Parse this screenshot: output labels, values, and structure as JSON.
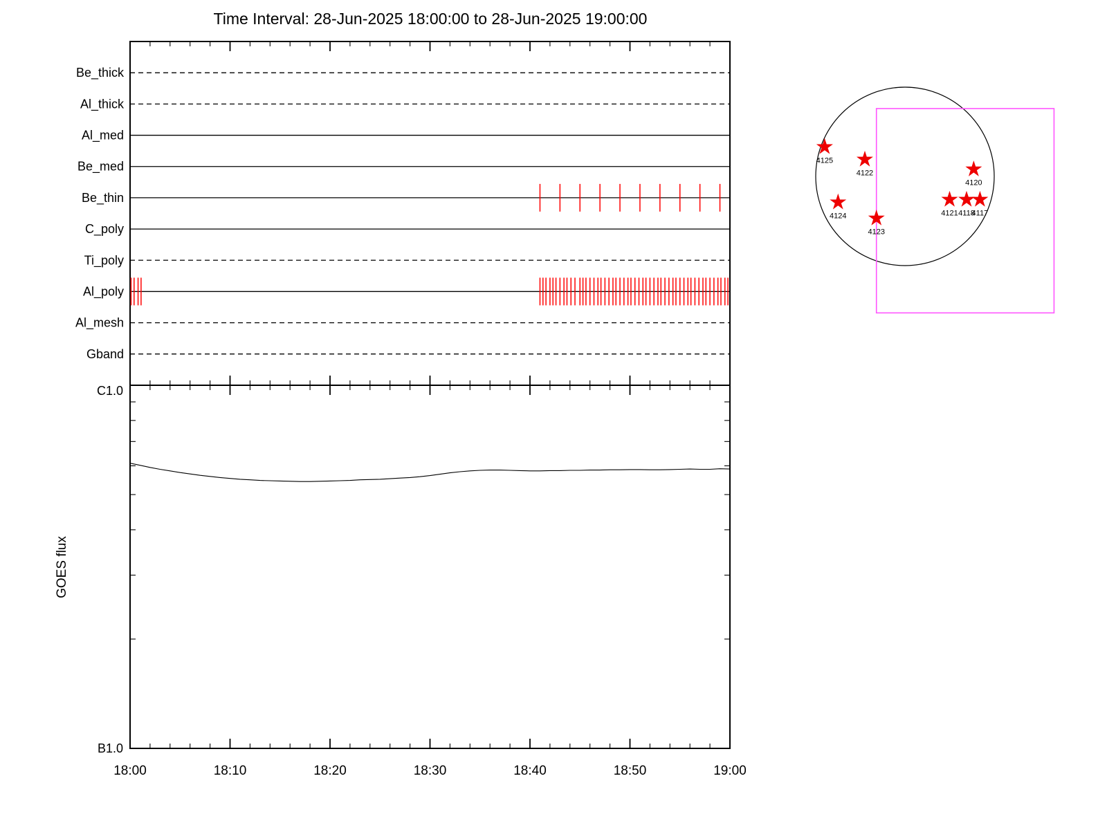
{
  "title": "Time Interval: 28-Jun-2025 18:00:00 to 28-Jun-2025 19:00:00",
  "colors": {
    "frame": "#000000",
    "exposure_tick": "#ff0000",
    "star": "#ee0000",
    "fov_box": "#ff55ff",
    "background": "#ffffff"
  },
  "chart_data": [
    {
      "type": "timeline",
      "panel": "xrt-filter-exposures",
      "x_axis": {
        "start_label": "18:00",
        "end_label": "19:00",
        "total_minutes": 60,
        "major_tick_minutes": 10,
        "minor_tick_minutes": 2
      },
      "channels": [
        {
          "label": "Be_thick",
          "line_style": "dashed",
          "exposure_ticks_min": []
        },
        {
          "label": "Al_thick",
          "line_style": "dashed",
          "exposure_ticks_min": []
        },
        {
          "label": "Al_med",
          "line_style": "solid",
          "exposure_ticks_min": []
        },
        {
          "label": "Be_med",
          "line_style": "solid",
          "exposure_ticks_min": []
        },
        {
          "label": "Be_thin",
          "line_style": "solid",
          "exposure_ticks_min": [
            41,
            43,
            45,
            47,
            49,
            51,
            53,
            55,
            57,
            59
          ]
        },
        {
          "label": "C_poly",
          "line_style": "solid",
          "exposure_ticks_min": []
        },
        {
          "label": "Ti_poly",
          "line_style": "dashed",
          "exposure_ticks_min": []
        },
        {
          "label": "Al_poly",
          "line_style": "solid",
          "exposure_ticks_min": [
            0.1,
            0.4,
            0.8,
            1.1,
            41.0,
            41.3,
            41.6,
            42.0,
            42.3,
            42.6,
            43.0,
            43.4,
            43.7,
            44.1,
            44.5,
            45.0,
            45.3,
            45.6,
            46.0,
            46.4,
            46.8,
            47.1,
            47.5,
            47.9,
            48.3,
            48.6,
            49.0,
            49.4,
            49.8,
            50.1,
            50.5,
            50.9,
            51.3,
            51.6,
            52.0,
            52.4,
            52.8,
            53.1,
            53.5,
            53.9,
            54.3,
            54.6,
            55.0,
            55.4,
            55.8,
            56.1,
            56.5,
            56.9,
            57.3,
            57.6,
            58.0,
            58.4,
            58.8,
            59.1,
            59.5,
            59.8
          ]
        },
        {
          "label": "Al_mesh",
          "line_style": "dashed",
          "exposure_ticks_min": []
        },
        {
          "label": "Gband",
          "line_style": "dashed",
          "exposure_ticks_min": []
        }
      ]
    },
    {
      "type": "line",
      "panel": "goes-flux",
      "ylabel": "GOES flux",
      "y_axis": {
        "scale": "log",
        "top_label": "C1.0",
        "bottom_label": "B1.0",
        "top_flux_wm2": 1e-06,
        "bottom_flux_wm2": 1e-07
      },
      "x_tick_labels": [
        "18:00",
        "18:10",
        "18:20",
        "18:30",
        "18:40",
        "18:50",
        "19:00"
      ],
      "series": [
        {
          "name": "GOES flux",
          "x_minutes": [
            0,
            1,
            2,
            3,
            4,
            5,
            6,
            7,
            8,
            9,
            10,
            11,
            12,
            13,
            14,
            15,
            16,
            17,
            18,
            19,
            20,
            21,
            22,
            23,
            24,
            25,
            26,
            27,
            28,
            29,
            30,
            31,
            32,
            33,
            34,
            35,
            36,
            37,
            38,
            39,
            40,
            41,
            42,
            43,
            44,
            45,
            46,
            47,
            48,
            49,
            50,
            51,
            52,
            53,
            54,
            55,
            56,
            57,
            58,
            59,
            60
          ],
          "flux_b_units": [
            6.1,
            6.02,
            5.94,
            5.87,
            5.81,
            5.75,
            5.7,
            5.65,
            5.61,
            5.57,
            5.54,
            5.51,
            5.49,
            5.47,
            5.46,
            5.45,
            5.44,
            5.43,
            5.43,
            5.44,
            5.45,
            5.46,
            5.47,
            5.49,
            5.5,
            5.51,
            5.53,
            5.55,
            5.57,
            5.6,
            5.64,
            5.69,
            5.74,
            5.78,
            5.81,
            5.83,
            5.84,
            5.84,
            5.83,
            5.82,
            5.81,
            5.81,
            5.82,
            5.82,
            5.83,
            5.83,
            5.84,
            5.84,
            5.85,
            5.85,
            5.86,
            5.86,
            5.85,
            5.85,
            5.86,
            5.87,
            5.88,
            5.87,
            5.87,
            5.89,
            5.88
          ]
        }
      ]
    },
    {
      "type": "scatter",
      "panel": "solar-disk-active-regions",
      "fov_box": {
        "left": -0.32,
        "top": -0.76,
        "right": 1.67,
        "bottom": 1.53
      },
      "active_regions": [
        {
          "label": "4125",
          "fx": -0.9,
          "fy": -0.33
        },
        {
          "label": "4122",
          "fx": -0.45,
          "fy": -0.19
        },
        {
          "label": "4120",
          "fx": 0.77,
          "fy": -0.08
        },
        {
          "label": "4124",
          "fx": -0.75,
          "fy": 0.29
        },
        {
          "label": "4121",
          "fx": 0.5,
          "fy": 0.26
        },
        {
          "label": "4118",
          "fx": 0.69,
          "fy": 0.26
        },
        {
          "label": "4117",
          "fx": 0.84,
          "fy": 0.26
        },
        {
          "label": "4123",
          "fx": -0.32,
          "fy": 0.47
        }
      ]
    }
  ]
}
